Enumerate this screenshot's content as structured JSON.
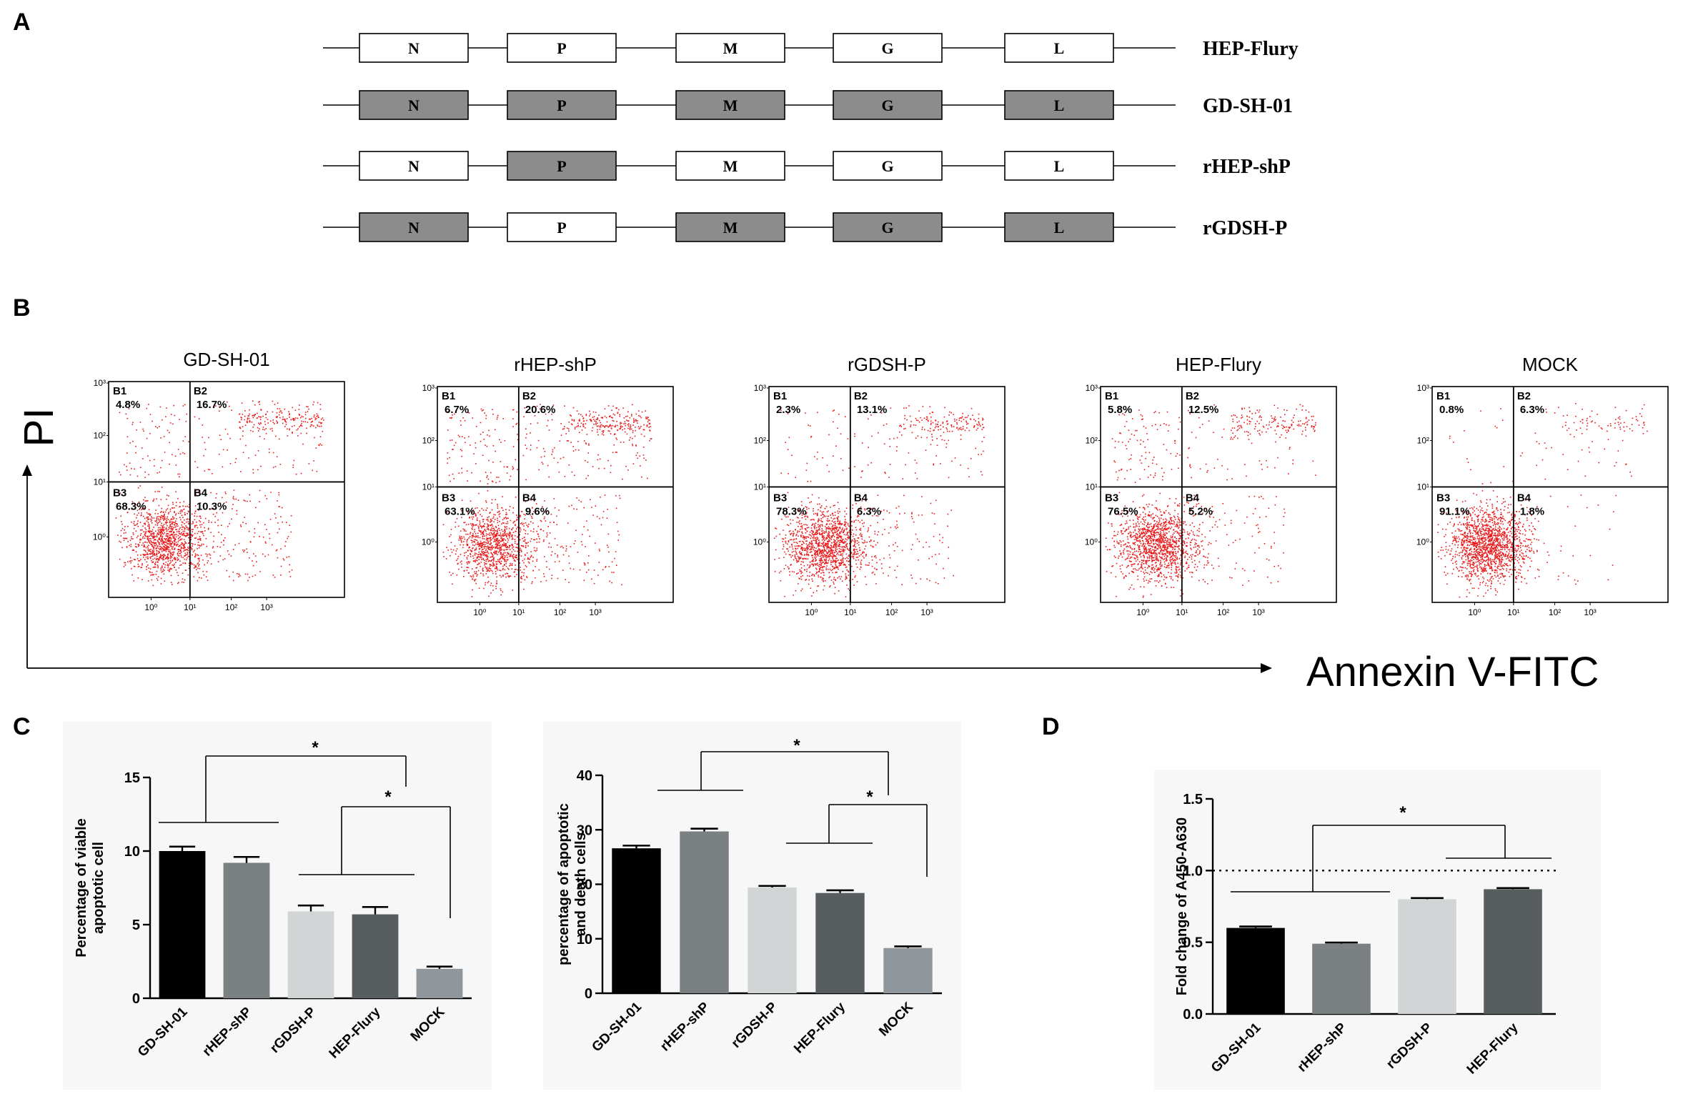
{
  "panel_letters": [
    "A",
    "B",
    "C",
    "D"
  ],
  "panel_a": {
    "genes": [
      "N",
      "P",
      "M",
      "G",
      "L"
    ],
    "constructs": [
      {
        "name": "HEP-Flury",
        "shaded": [
          false,
          false,
          false,
          false,
          false
        ]
      },
      {
        "name": "GD-SH-01",
        "shaded": [
          true,
          true,
          true,
          true,
          true
        ]
      },
      {
        "name": "rHEP-shP",
        "shaded": [
          false,
          true,
          false,
          false,
          false
        ]
      },
      {
        "name": "rGDSH-P",
        "shaded": [
          true,
          false,
          true,
          true,
          true
        ]
      }
    ],
    "colors": {
      "shaded": "#8c8c8c",
      "open": "#ffffff"
    }
  },
  "panel_b": {
    "x_axis_label": "Annexin V-FITC",
    "y_axis_label": "PI",
    "x_ticks": [
      "10⁰",
      "10¹",
      "10²",
      "10³"
    ],
    "y_ticks": [
      "10³",
      "10²",
      "10¹",
      "10⁰"
    ],
    "dot_color": "#e8191a",
    "plots": [
      {
        "title": "GD-SH-01",
        "quadrants": [
          {
            "id": "B1",
            "value": "4.8%"
          },
          {
            "id": "B2",
            "value": "16.7%"
          },
          {
            "id": "B3",
            "value": "68.3%"
          },
          {
            "id": "B4",
            "value": "10.3%"
          }
        ]
      },
      {
        "title": "rHEP-shP",
        "quadrants": [
          {
            "id": "B1",
            "value": "6.7%"
          },
          {
            "id": "B2",
            "value": "20.6%"
          },
          {
            "id": "B3",
            "value": "63.1%"
          },
          {
            "id": "B4",
            "value": "9.6%"
          }
        ]
      },
      {
        "title": "rGDSH-P",
        "quadrants": [
          {
            "id": "B1",
            "value": "2.3%"
          },
          {
            "id": "B2",
            "value": "13.1%"
          },
          {
            "id": "B3",
            "value": "78.3%"
          },
          {
            "id": "B4",
            "value": "6.3%"
          }
        ]
      },
      {
        "title": "HEP-Flury",
        "quadrants": [
          {
            "id": "B1",
            "value": "5.8%"
          },
          {
            "id": "B2",
            "value": "12.5%"
          },
          {
            "id": "B3",
            "value": "76.5%"
          },
          {
            "id": "B4",
            "value": "5.2%"
          }
        ]
      },
      {
        "title": "MOCK",
        "quadrants": [
          {
            "id": "B1",
            "value": "0.8%"
          },
          {
            "id": "B2",
            "value": "6.3%"
          },
          {
            "id": "B3",
            "value": "91.1%"
          },
          {
            "id": "B4",
            "value": "1.8%"
          }
        ]
      }
    ]
  },
  "chart_data": [
    {
      "type": "bar",
      "panel": "C",
      "ylabel": "Percentage of viable apoptotic cell",
      "ylabel_lines": [
        "Percentage of viable",
        "apoptotic cell"
      ],
      "categories": [
        "GD-SH-01",
        "rHEP-shP",
        "rGDSH-P",
        "HEP-Flury",
        "MOCK"
      ],
      "values": [
        10.0,
        9.2,
        5.9,
        5.7,
        2.0
      ],
      "errors": [
        0.3,
        0.4,
        0.4,
        0.5,
        0.15
      ],
      "ylim": [
        0,
        15
      ],
      "yticks": [
        0,
        5,
        10,
        15
      ],
      "colors": [
        "#000000",
        "#7b8083",
        "#d2d5d6",
        "#585d60",
        "#8f979c"
      ],
      "significance": "*"
    },
    {
      "type": "bar",
      "panel": "C",
      "ylabel": "percentage of apoptotic and death cells",
      "ylabel_lines": [
        "percentage of apoptotic",
        "and death cells"
      ],
      "categories": [
        "GD-SH-01",
        "rHEP-shP",
        "rGDSH-P",
        "HEP-Flury",
        "MOCK"
      ],
      "values": [
        26.6,
        29.7,
        19.4,
        18.4,
        8.3
      ],
      "errors": [
        0.5,
        0.5,
        0.3,
        0.5,
        0.3
      ],
      "ylim": [
        0,
        40
      ],
      "yticks": [
        0,
        10,
        20,
        30,
        40
      ],
      "colors": [
        "#000000",
        "#7b8083",
        "#d2d5d6",
        "#585d60",
        "#8f979c"
      ],
      "significance": "*"
    },
    {
      "type": "bar",
      "panel": "D",
      "ylabel": "Fold change of A450-A630",
      "ylabel_lines": [
        "Fold change of A450-A630"
      ],
      "categories": [
        "GD-SH-01",
        "rHEP-shP",
        "rGDSH-P",
        "HEP-Flury"
      ],
      "values": [
        0.6,
        0.49,
        0.8,
        0.87
      ],
      "errors": [
        0.01,
        0.008,
        0.008,
        0.008
      ],
      "ylim": [
        0,
        1.5
      ],
      "yticks": [
        0.0,
        0.5,
        1.0,
        1.5
      ],
      "ytick_labels": [
        "0.0",
        "0.5",
        "1.0",
        "1.5"
      ],
      "reference_line": 1.0,
      "colors": [
        "#000000",
        "#7b8083",
        "#d2d5d6",
        "#585d60"
      ],
      "significance": "*"
    }
  ]
}
